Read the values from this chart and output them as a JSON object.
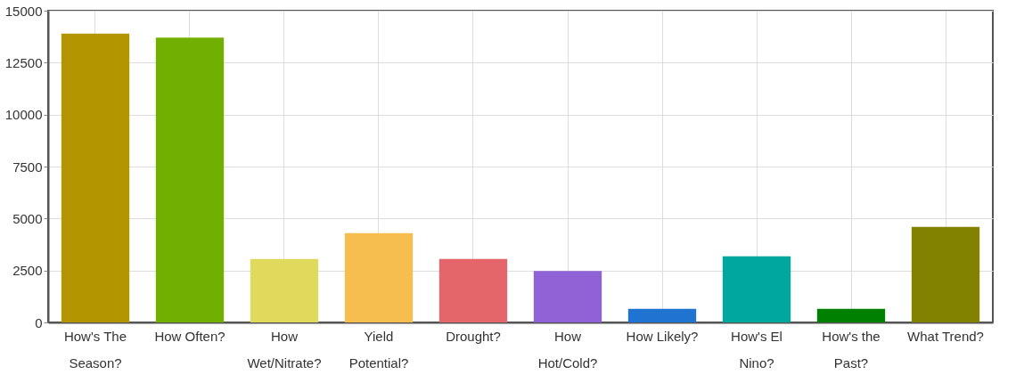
{
  "chart_data": {
    "type": "bar",
    "categories": [
      "How's The\nSeason?",
      "How Often?",
      "How\nWet/Nitrate?",
      "Yield\nPotential?",
      "Drought?",
      "How\nHot/Cold?",
      "How Likely?",
      "How's El\nNino?",
      "How's the\nPast?",
      "What Trend?"
    ],
    "values": [
      13900,
      13700,
      3050,
      4300,
      3050,
      2480,
      650,
      3180,
      650,
      4600
    ],
    "colors": [
      "#b39500",
      "#72b000",
      "#dfd95c",
      "#f6bd4f",
      "#e5666a",
      "#8f63d6",
      "#1f74d1",
      "#00a79f",
      "#008000",
      "#838100"
    ],
    "ylim": [
      0,
      15000
    ],
    "yticks": [
      0,
      2500,
      5000,
      7500,
      10000,
      12500,
      15000
    ],
    "grid": true
  }
}
